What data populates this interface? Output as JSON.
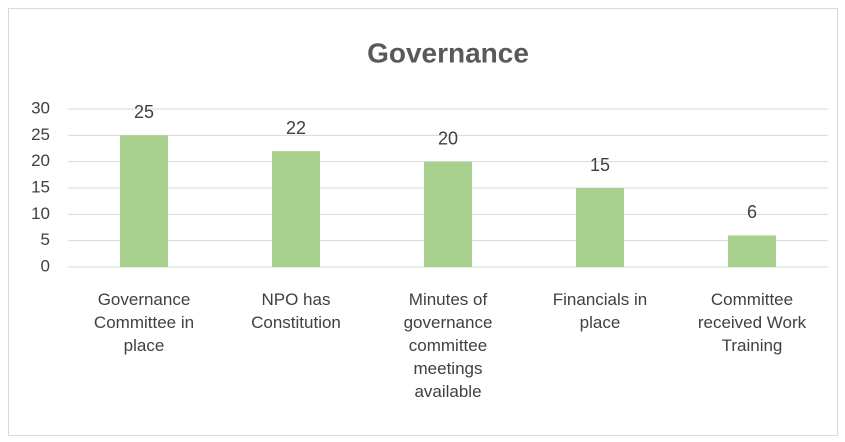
{
  "chart_data": {
    "type": "bar",
    "title": "Governance",
    "categories": [
      "Governance Committee in place",
      "NPO has Constitution",
      "Minutes of governance committee meetings available",
      "Financials in place",
      "Committee received Work Training"
    ],
    "values": [
      25,
      22,
      20,
      15,
      6
    ],
    "color": "#a9d18e",
    "ylim": [
      0,
      30
    ],
    "yticks": [
      0,
      5,
      10,
      15,
      20,
      25,
      30
    ],
    "grid": true
  }
}
